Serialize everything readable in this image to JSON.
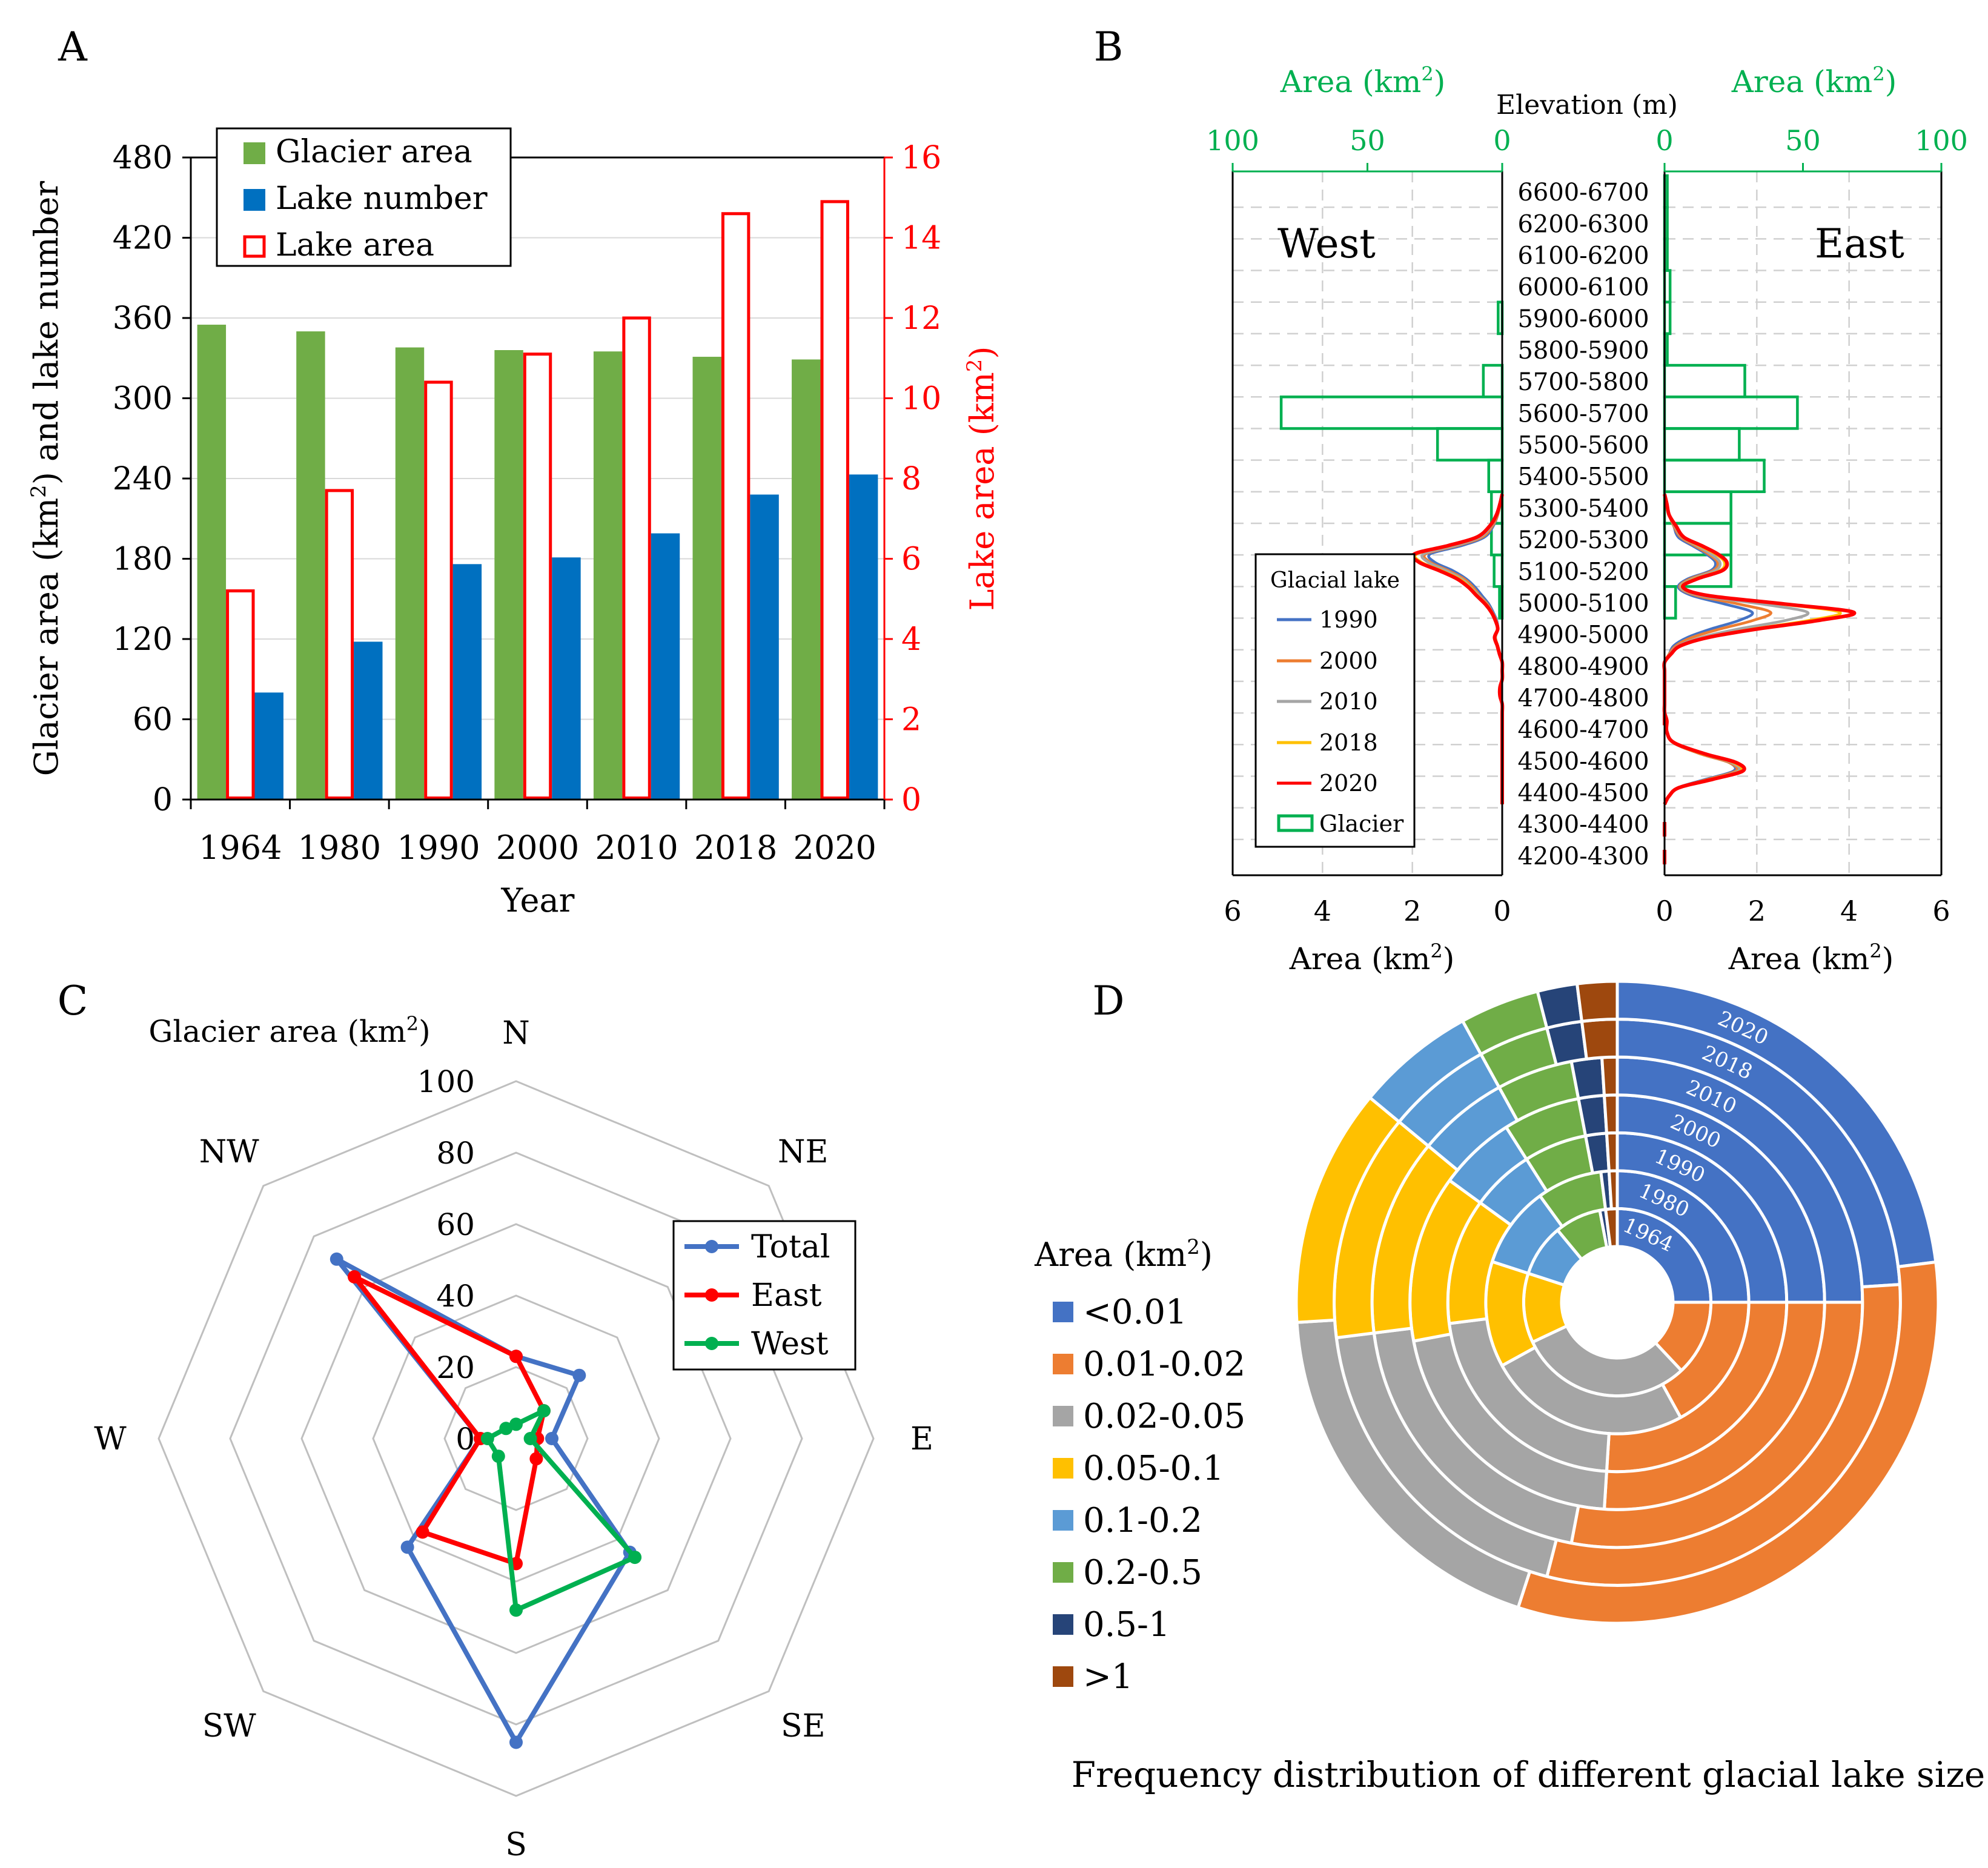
{
  "panel_labels": [
    "A",
    "B",
    "C",
    "D"
  ],
  "colors": {
    "glacier_green": "#70AD47",
    "lake_blue": "#0070C0",
    "lake_red": "#FF0000",
    "b_green": "#00B050",
    "line_1990": "#4472C4",
    "line_2000": "#ED7D31",
    "line_2010": "#A5A5A5",
    "line_2018": "#FFC000",
    "line_2020": "#FF0000",
    "radar_total": "#4472C4",
    "radar_east": "#FF0000",
    "radar_west": "#00B050",
    "donut": [
      "#4472C4",
      "#ED7D31",
      "#A5A5A5",
      "#FFC000",
      "#5B9BD5",
      "#70AD47",
      "#264478",
      "#9E480E"
    ]
  },
  "chart_data": [
    {
      "id": "A",
      "type": "bar",
      "categories": [
        "1964",
        "1980",
        "1990",
        "2000",
        "2010",
        "2018",
        "2020"
      ],
      "series": [
        {
          "name": "Glacier area",
          "axis": "left",
          "values": [
            355,
            350,
            338,
            336,
            335,
            331,
            329
          ]
        },
        {
          "name": "Lake number",
          "axis": "left",
          "values": [
            80,
            118,
            176,
            181,
            199,
            228,
            243
          ]
        },
        {
          "name": "Lake area",
          "axis": "right",
          "values": [
            5.2,
            7.7,
            10.4,
            11.1,
            12.0,
            14.6,
            14.9
          ]
        }
      ],
      "ylabel_left": "Glacier area (km²) and lake number",
      "ylabel_right": "Lake area (km²)",
      "ylabel_left_parts": [
        "Glacier area (km",
        "2",
        ") and lake number"
      ],
      "ylabel_right_parts": [
        "Lake area (km",
        "2",
        ")"
      ],
      "xlabel": "Year",
      "ylim_left": [
        0,
        480
      ],
      "ylim_right": [
        0,
        16
      ],
      "yticks_left": [
        "0",
        "60",
        "120",
        "180",
        "240",
        "300",
        "360",
        "420",
        "480"
      ],
      "yticks_right": [
        "0",
        "2",
        "4",
        "6",
        "8",
        "10",
        "12",
        "14",
        "16"
      ],
      "legend": [
        "Glacier area",
        "Lake number",
        "Lake area"
      ],
      "legend_position": "top-left"
    },
    {
      "id": "B",
      "type": "bar",
      "title": "Elevation (m)",
      "bands": [
        "6600-6700",
        "6200-6300",
        "6100-6200",
        "6000-6100",
        "5900-6000",
        "5800-5900",
        "5700-5800",
        "5600-5700",
        "5500-5600",
        "5400-5500",
        "5300-5400",
        "5200-5300",
        "5100-5200",
        "5000-5100",
        "4900-5000",
        "4800-4900",
        "4700-4800",
        "4600-4700",
        "4500-4600",
        "4400-4500",
        "4300-4400",
        "4200-4300"
      ],
      "glacier_west": [
        0,
        0,
        0,
        0,
        1.5,
        0,
        7,
        82,
        24,
        5,
        4,
        4,
        3,
        1,
        0,
        0,
        0,
        0,
        0,
        0,
        0,
        0
      ],
      "glacier_east": [
        1,
        1,
        1,
        2,
        2,
        1,
        29,
        48,
        27,
        36,
        24,
        24,
        24,
        4,
        0,
        0,
        0,
        0,
        0,
        0,
        0,
        0
      ],
      "lake_profile_elevation": [
        5555,
        5520,
        5480,
        5440,
        5400,
        5370,
        5340,
        5310,
        5280,
        5250,
        5220,
        5190,
        5160,
        5130,
        5100,
        5070,
        5040,
        5010,
        4980,
        4950,
        4920,
        4890,
        4860,
        4830,
        4800,
        4770,
        4740,
        4700,
        4660,
        4620,
        4590,
        4560,
        4530,
        4500,
        4470,
        4440
      ],
      "lake_west": {
        "1990": [
          0,
          0.05,
          0.1,
          0.2,
          0.4,
          0.9,
          1.6,
          1.5,
          1.1,
          0.8,
          0.6,
          0.45,
          0.3,
          0.2,
          0.12,
          0.1,
          0.15,
          0.1,
          0.05,
          0,
          0,
          0,
          0.05,
          0.05,
          0,
          0,
          0,
          0,
          0,
          0,
          0,
          0,
          0,
          0,
          0,
          0
        ],
        "2000": [
          0,
          0.05,
          0.1,
          0.22,
          0.45,
          1.0,
          1.7,
          1.6,
          1.2,
          0.85,
          0.65,
          0.5,
          0.33,
          0.22,
          0.13,
          0.1,
          0.15,
          0.1,
          0.05,
          0,
          0,
          0,
          0.05,
          0.05,
          0,
          0,
          0,
          0,
          0,
          0,
          0,
          0,
          0,
          0,
          0,
          0
        ],
        "2010": [
          0,
          0.05,
          0.12,
          0.25,
          0.5,
          1.05,
          1.75,
          1.65,
          1.25,
          0.9,
          0.7,
          0.52,
          0.35,
          0.22,
          0.13,
          0.1,
          0.16,
          0.1,
          0.05,
          0,
          0,
          0,
          0.05,
          0.05,
          0,
          0,
          0,
          0,
          0,
          0,
          0,
          0,
          0,
          0,
          0,
          0
        ],
        "2018": [
          0,
          0.05,
          0.12,
          0.27,
          0.55,
          1.15,
          1.9,
          1.8,
          1.35,
          0.95,
          0.72,
          0.55,
          0.36,
          0.23,
          0.14,
          0.1,
          0.16,
          0.1,
          0.06,
          0,
          0,
          0,
          0.05,
          0.05,
          0,
          0,
          0,
          0,
          0,
          0,
          0,
          0,
          0,
          0,
          0,
          0
        ],
        "2020": [
          0,
          0.05,
          0.13,
          0.28,
          0.57,
          1.2,
          1.95,
          1.85,
          1.4,
          1.0,
          0.75,
          0.57,
          0.38,
          0.24,
          0.15,
          0.1,
          0.17,
          0.11,
          0.06,
          0,
          0,
          0,
          0.05,
          0.05,
          0,
          0,
          0,
          0,
          0,
          0,
          0,
          0,
          0,
          0,
          0,
          0
        ]
      },
      "lake_east": {
        "1990": [
          0,
          0.05,
          0.1,
          0.2,
          0.3,
          0.6,
          0.9,
          1.1,
          1.0,
          0.5,
          0.3,
          0.6,
          1.3,
          1.9,
          1.6,
          1.0,
          0.5,
          0.2,
          0.1,
          0,
          0,
          0,
          0,
          0,
          0,
          0,
          0.05,
          0.05,
          0.2,
          0.8,
          1.4,
          1.5,
          0.9,
          0.3,
          0.1,
          0
        ],
        "2000": [
          0,
          0.05,
          0.1,
          0.2,
          0.35,
          0.65,
          0.95,
          1.15,
          1.05,
          0.55,
          0.33,
          0.7,
          1.6,
          2.3,
          1.9,
          1.2,
          0.6,
          0.25,
          0.1,
          0,
          0,
          0,
          0,
          0,
          0,
          0,
          0.05,
          0.05,
          0.2,
          0.8,
          1.4,
          1.55,
          0.95,
          0.3,
          0.1,
          0
        ],
        "2010": [
          0,
          0.05,
          0.1,
          0.22,
          0.38,
          0.7,
          1.0,
          1.2,
          1.1,
          0.6,
          0.35,
          0.8,
          2.1,
          3.1,
          2.6,
          1.6,
          0.8,
          0.3,
          0.12,
          0,
          0,
          0,
          0,
          0,
          0,
          0,
          0.05,
          0.05,
          0.2,
          0.85,
          1.45,
          1.6,
          1.0,
          0.3,
          0.1,
          0
        ],
        "2018": [
          0,
          0.05,
          0.1,
          0.24,
          0.4,
          0.75,
          1.1,
          1.3,
          1.2,
          0.65,
          0.38,
          0.9,
          2.5,
          3.8,
          3.1,
          1.9,
          0.9,
          0.35,
          0.13,
          0,
          0,
          0,
          0,
          0,
          0,
          0,
          0.05,
          0.05,
          0.2,
          0.85,
          1.5,
          1.65,
          1.0,
          0.3,
          0.1,
          0
        ],
        "2020": [
          0,
          0.05,
          0.1,
          0.25,
          0.42,
          0.8,
          1.15,
          1.35,
          1.25,
          0.7,
          0.4,
          0.95,
          2.6,
          4.1,
          3.3,
          2.0,
          0.95,
          0.35,
          0.14,
          0,
          0,
          0,
          0,
          0,
          0,
          0,
          0.05,
          0.05,
          0.22,
          0.9,
          1.55,
          1.7,
          1.05,
          0.32,
          0.1,
          0
        ]
      },
      "west_label": "West",
      "east_label": "East",
      "top_axis_label": "Area (km²)",
      "top_axis_label_parts": [
        "Area (km",
        "2",
        ")"
      ],
      "bottom_axis_label": "Area (km²)",
      "bottom_axis_label_parts": [
        "Area (km",
        "2",
        ")"
      ],
      "top_ticks_west": [
        "100",
        "50",
        "0"
      ],
      "top_ticks_east": [
        "0",
        "50",
        "100"
      ],
      "bottom_ticks_west": [
        "6",
        "4",
        "2",
        "0"
      ],
      "bottom_ticks_east": [
        "0",
        "2",
        "4",
        "6"
      ],
      "glacier_xlim": [
        0,
        100
      ],
      "lake_xlim": [
        0,
        6
      ],
      "legend_title": "Glacial lake",
      "legend": [
        "1990",
        "2000",
        "2010",
        "2018",
        "2020",
        "Glacier"
      ],
      "legend_position": "bottom-left"
    },
    {
      "id": "C",
      "type": "radar",
      "title": "Glacier area (km²)",
      "title_parts": [
        "Glacier area (km",
        "2",
        ")"
      ],
      "axes": [
        "N",
        "NE",
        "E",
        "SE",
        "S",
        "SW",
        "W",
        "NW"
      ],
      "rticks": [
        "0",
        "20",
        "40",
        "60",
        "80",
        "100"
      ],
      "rlim": [
        0,
        100
      ],
      "series": [
        {
          "name": "Total",
          "values": [
            23,
            25,
            10,
            45,
            85,
            43,
            10,
            71
          ]
        },
        {
          "name": "East",
          "values": [
            23,
            11,
            6,
            8,
            35,
            37,
            10,
            64
          ]
        },
        {
          "name": "West",
          "values": [
            4,
            11,
            4,
            47,
            48,
            7,
            8,
            4
          ]
        }
      ],
      "legend": [
        "Total",
        "East",
        "West"
      ],
      "legend_position": "top-right"
    },
    {
      "id": "D",
      "type": "pie",
      "title": "Frequency distribution of different glacial lake size",
      "legend_title": "Area (km²)",
      "legend_title_parts": [
        "Area (km",
        "2",
        ")"
      ],
      "categories": [
        "<0.01",
        "0.01-0.02",
        "0.02-0.05",
        "0.05-0.1",
        "0.1-0.2",
        "0.2-0.5",
        "0.5-1",
        ">1"
      ],
      "rings": [
        {
          "year": "1964",
          "values": [
            25,
            13,
            30,
            12,
            9,
            8,
            1,
            2
          ]
        },
        {
          "year": "1980",
          "values": [
            25,
            17,
            25,
            13,
            10,
            8,
            1,
            1
          ]
        },
        {
          "year": "1990",
          "values": [
            25,
            26,
            22,
            12,
            6,
            6,
            2,
            1
          ]
        },
        {
          "year": "2000",
          "values": [
            25,
            26,
            21,
            13,
            6,
            6,
            2,
            1
          ]
        },
        {
          "year": "2010",
          "values": [
            25,
            28,
            20,
            13,
            6,
            5,
            2,
            1
          ]
        },
        {
          "year": "2018",
          "values": [
            24,
            30,
            19,
            13,
            6,
            4,
            2,
            2
          ]
        },
        {
          "year": "2020",
          "values": [
            23,
            32,
            19,
            12,
            6,
            4,
            2,
            2
          ]
        }
      ]
    }
  ]
}
